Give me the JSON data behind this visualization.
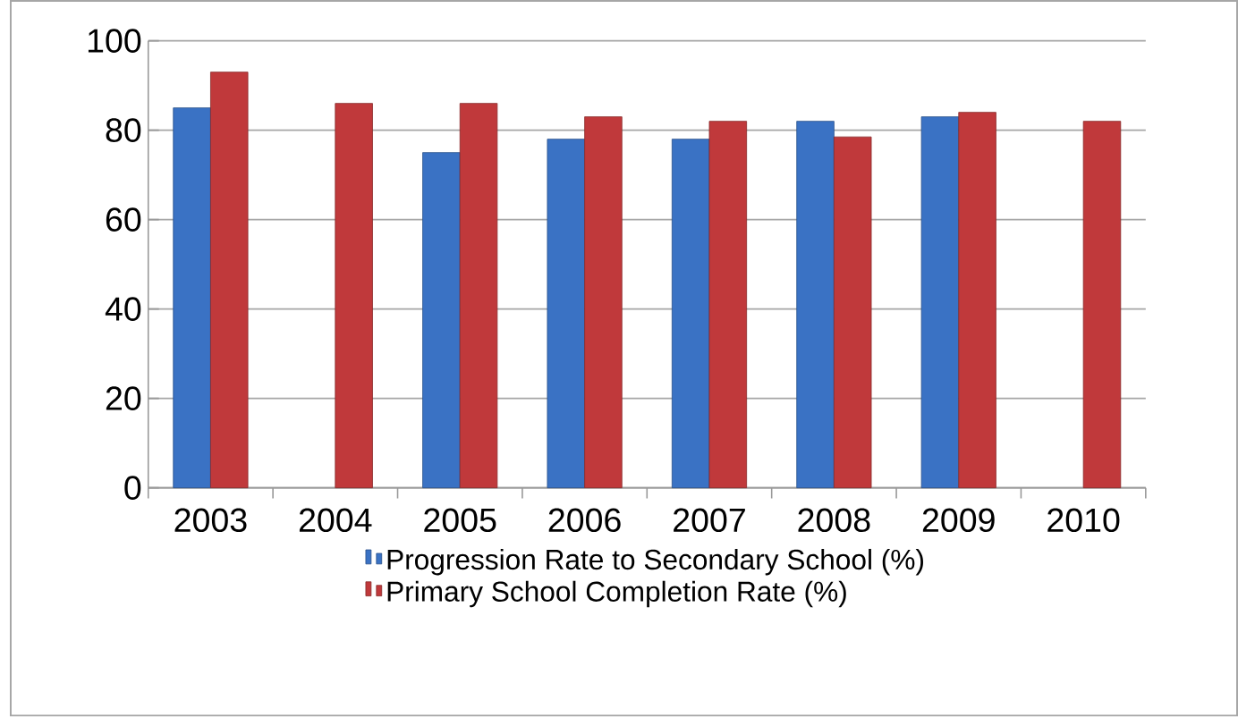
{
  "chart_data": {
    "type": "bar",
    "categories": [
      "2003",
      "2004",
      "2005",
      "2006",
      "2007",
      "2008",
      "2009",
      "2010"
    ],
    "series": [
      {
        "name": "Progression Rate to Secondary School (%)",
        "color": "#3a72c4",
        "values": [
          85,
          null,
          75,
          78,
          78,
          82,
          83,
          null
        ]
      },
      {
        "name": "Primary School Completion Rate (%)",
        "color": "#c0393b",
        "values": [
          93,
          86,
          86,
          83,
          82,
          78.5,
          84,
          82
        ]
      }
    ],
    "ylim": [
      0,
      100
    ],
    "yticks": [
      0,
      20,
      40,
      60,
      80,
      100
    ],
    "grid": "y",
    "legend": "bottom"
  }
}
